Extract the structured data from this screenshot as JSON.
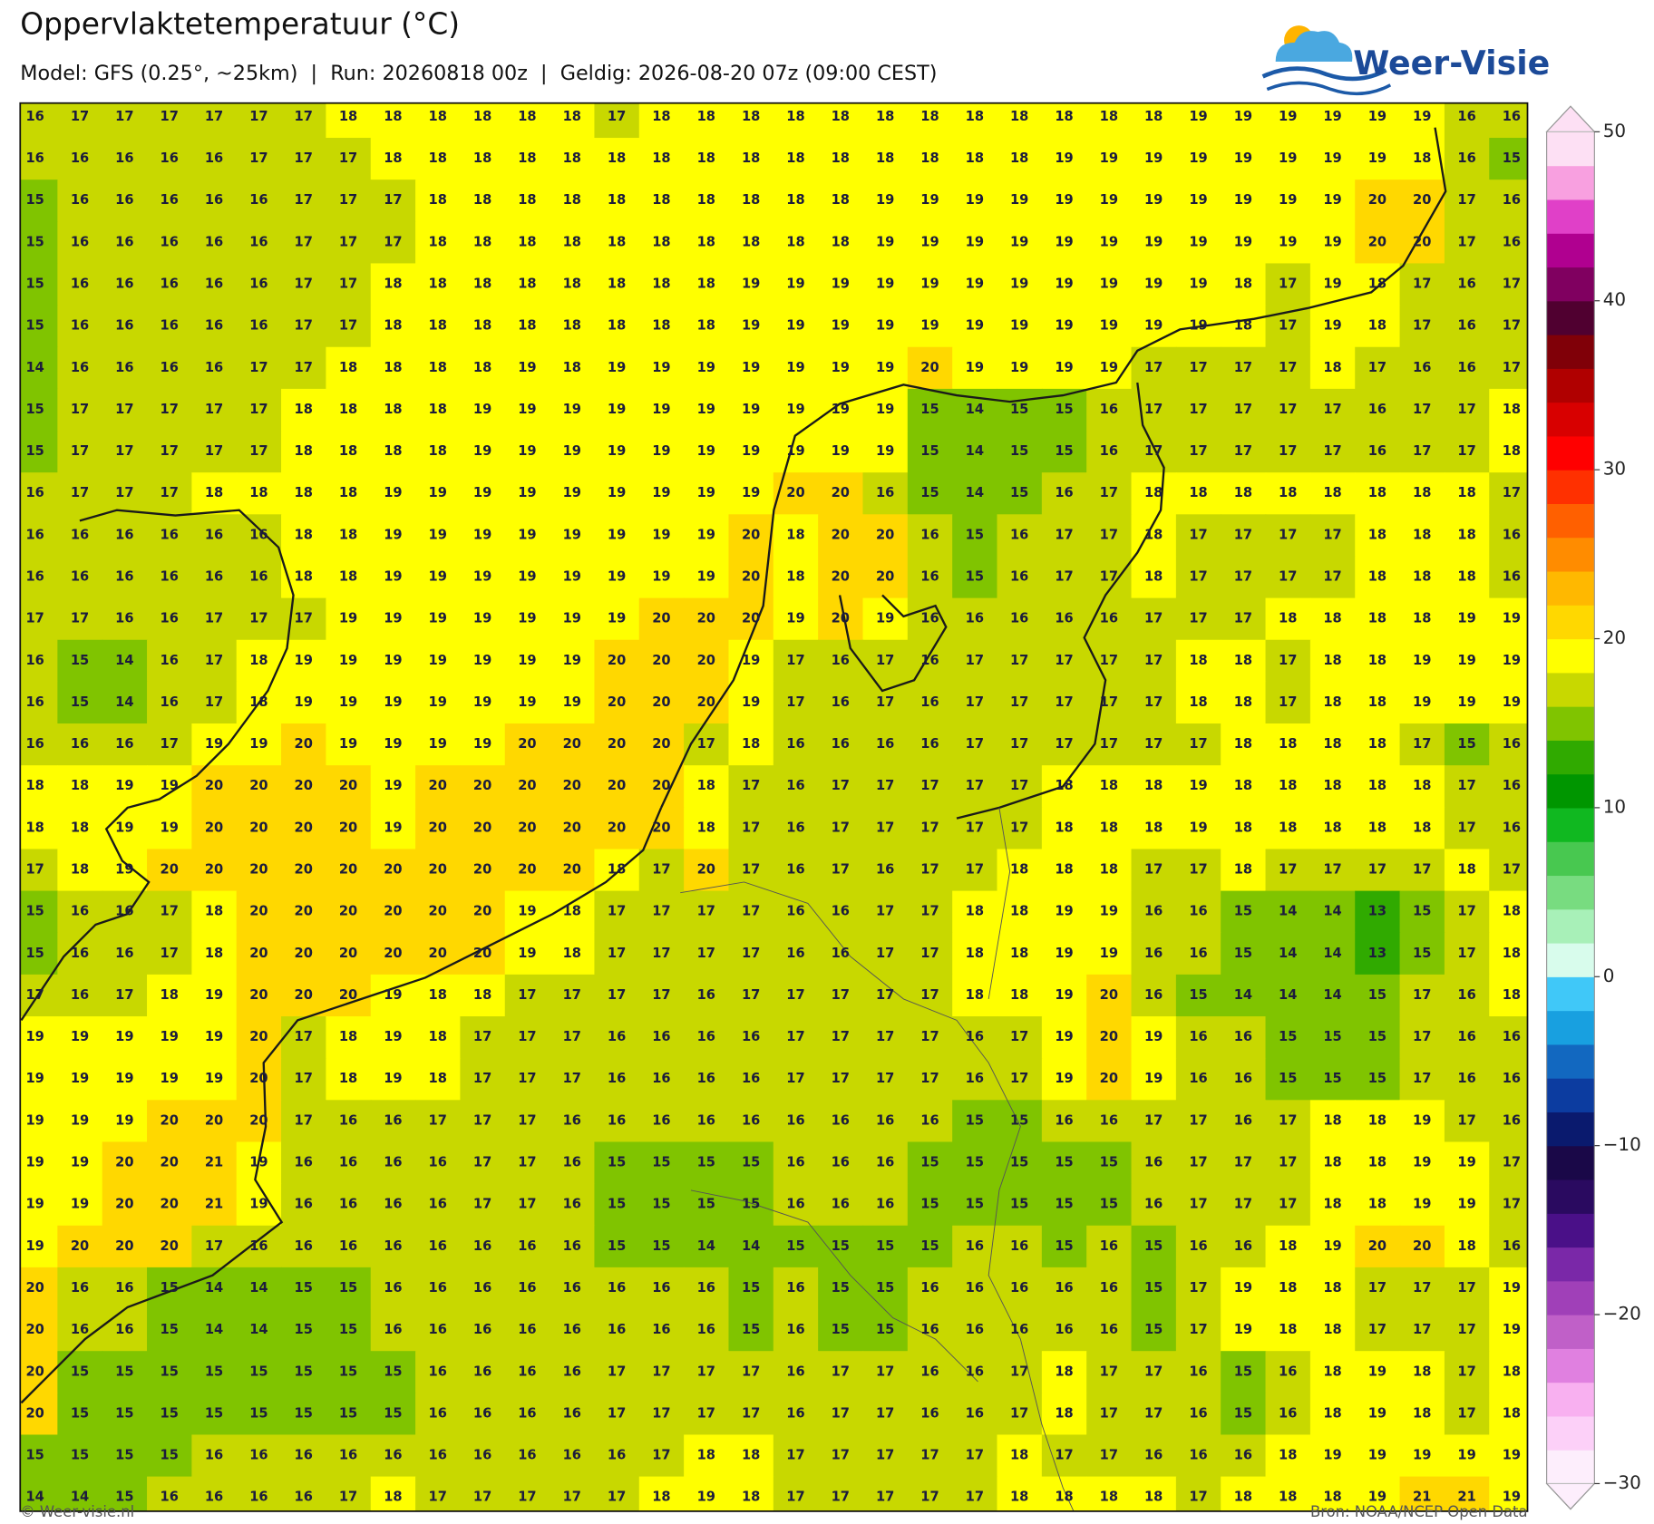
{
  "header": {
    "title": "Oppervlaktetemperatuur (°C)",
    "subtitle": "Model: GFS (0.25°, ~25km)  |  Run: 20260818 00z  |  Geldig: 2026-08-20 07z (09:00 CEST)",
    "logo": "Weer-Visie"
  },
  "map": {
    "grid": [
      [
        16,
        17,
        17,
        17,
        17,
        17,
        17,
        18,
        18,
        18,
        18,
        18,
        18,
        17,
        18,
        18,
        18,
        18,
        18,
        18,
        18,
        18,
        18,
        18,
        18,
        18,
        19,
        19,
        19,
        19,
        19,
        19,
        16,
        16
      ],
      [
        16,
        16,
        16,
        16,
        16,
        17,
        17,
        17,
        18,
        18,
        18,
        18,
        18,
        18,
        18,
        18,
        18,
        18,
        18,
        18,
        18,
        18,
        18,
        19,
        19,
        19,
        19,
        19,
        19,
        19,
        19,
        18,
        16,
        15
      ],
      [
        15,
        16,
        16,
        16,
        16,
        16,
        17,
        17,
        17,
        18,
        18,
        18,
        18,
        18,
        18,
        18,
        18,
        18,
        18,
        19,
        19,
        19,
        19,
        19,
        19,
        19,
        19,
        19,
        19,
        19,
        20,
        20,
        17,
        16
      ],
      [
        15,
        16,
        16,
        16,
        16,
        16,
        17,
        17,
        17,
        18,
        18,
        18,
        18,
        18,
        18,
        18,
        18,
        18,
        18,
        19,
        19,
        19,
        19,
        19,
        19,
        19,
        19,
        19,
        19,
        19,
        20,
        20,
        17,
        16
      ],
      [
        15,
        16,
        16,
        16,
        16,
        16,
        17,
        17,
        18,
        18,
        18,
        18,
        18,
        18,
        18,
        18,
        19,
        19,
        19,
        19,
        19,
        19,
        19,
        19,
        19,
        19,
        19,
        18,
        17,
        19,
        18,
        17,
        16,
        17
      ],
      [
        15,
        16,
        16,
        16,
        16,
        16,
        17,
        17,
        18,
        18,
        18,
        18,
        18,
        18,
        18,
        18,
        19,
        19,
        19,
        19,
        19,
        19,
        19,
        19,
        19,
        19,
        19,
        18,
        17,
        19,
        18,
        17,
        16,
        17
      ],
      [
        14,
        16,
        16,
        16,
        16,
        17,
        17,
        18,
        18,
        18,
        18,
        19,
        18,
        19,
        19,
        19,
        19,
        19,
        19,
        19,
        20,
        19,
        19,
        19,
        19,
        17,
        17,
        17,
        17,
        18,
        17,
        16,
        16,
        17
      ],
      [
        15,
        17,
        17,
        17,
        17,
        17,
        18,
        18,
        18,
        18,
        19,
        19,
        19,
        19,
        19,
        19,
        19,
        19,
        19,
        19,
        15,
        14,
        15,
        15,
        16,
        17,
        17,
        17,
        17,
        17,
        16,
        17,
        17,
        18
      ],
      [
        15,
        17,
        17,
        17,
        17,
        17,
        18,
        18,
        18,
        18,
        19,
        19,
        19,
        19,
        19,
        19,
        19,
        19,
        19,
        19,
        15,
        14,
        15,
        15,
        16,
        17,
        17,
        17,
        17,
        17,
        16,
        17,
        17,
        18
      ],
      [
        16,
        17,
        17,
        17,
        18,
        18,
        18,
        18,
        19,
        19,
        19,
        19,
        19,
        19,
        19,
        19,
        19,
        20,
        20,
        16,
        15,
        14,
        15,
        16,
        17,
        18,
        18,
        18,
        18,
        18,
        18,
        18,
        18,
        17
      ],
      [
        16,
        16,
        16,
        16,
        16,
        16,
        18,
        18,
        19,
        19,
        19,
        19,
        19,
        19,
        19,
        19,
        20,
        18,
        20,
        20,
        16,
        15,
        16,
        17,
        17,
        18,
        17,
        17,
        17,
        17,
        18,
        18,
        18,
        16
      ],
      [
        16,
        16,
        16,
        16,
        16,
        16,
        18,
        18,
        19,
        19,
        19,
        19,
        19,
        19,
        19,
        19,
        20,
        18,
        20,
        20,
        16,
        15,
        16,
        17,
        17,
        18,
        17,
        17,
        17,
        17,
        18,
        18,
        18,
        16
      ],
      [
        17,
        17,
        16,
        16,
        17,
        17,
        17,
        19,
        19,
        19,
        19,
        19,
        19,
        19,
        20,
        20,
        20,
        19,
        20,
        19,
        16,
        16,
        16,
        16,
        16,
        17,
        17,
        17,
        18,
        18,
        18,
        18,
        19,
        19
      ],
      [
        16,
        15,
        14,
        16,
        17,
        18,
        19,
        19,
        19,
        19,
        19,
        19,
        19,
        20,
        20,
        20,
        19,
        17,
        16,
        17,
        16,
        17,
        17,
        17,
        17,
        17,
        18,
        18,
        17,
        18,
        18,
        19,
        19,
        19
      ],
      [
        16,
        15,
        14,
        16,
        17,
        18,
        19,
        19,
        19,
        19,
        19,
        19,
        19,
        20,
        20,
        20,
        19,
        17,
        16,
        17,
        16,
        17,
        17,
        17,
        17,
        17,
        18,
        18,
        17,
        18,
        18,
        19,
        19,
        19
      ],
      [
        16,
        16,
        16,
        17,
        19,
        19,
        20,
        19,
        19,
        19,
        19,
        20,
        20,
        20,
        20,
        17,
        18,
        16,
        16,
        16,
        16,
        17,
        17,
        17,
        17,
        17,
        17,
        18,
        18,
        18,
        18,
        17,
        15,
        16
      ],
      [
        18,
        18,
        19,
        19,
        20,
        20,
        20,
        20,
        19,
        20,
        20,
        20,
        20,
        20,
        20,
        18,
        17,
        16,
        17,
        17,
        17,
        17,
        17,
        18,
        18,
        18,
        19,
        18,
        18,
        18,
        18,
        18,
        17,
        16
      ],
      [
        18,
        18,
        19,
        19,
        20,
        20,
        20,
        20,
        19,
        20,
        20,
        20,
        20,
        20,
        20,
        18,
        17,
        16,
        17,
        17,
        17,
        17,
        17,
        18,
        18,
        18,
        19,
        18,
        18,
        18,
        18,
        18,
        17,
        16
      ],
      [
        17,
        18,
        19,
        20,
        20,
        20,
        20,
        20,
        20,
        20,
        20,
        20,
        20,
        18,
        17,
        20,
        17,
        16,
        17,
        16,
        17,
        17,
        18,
        18,
        18,
        17,
        17,
        18,
        17,
        17,
        17,
        17,
        18,
        17
      ],
      [
        15,
        16,
        16,
        17,
        18,
        20,
        20,
        20,
        20,
        20,
        20,
        19,
        18,
        17,
        17,
        17,
        17,
        16,
        16,
        17,
        17,
        18,
        18,
        19,
        19,
        16,
        16,
        15,
        14,
        14,
        13,
        15,
        17,
        18
      ],
      [
        15,
        16,
        16,
        17,
        18,
        20,
        20,
        20,
        20,
        20,
        20,
        19,
        18,
        17,
        17,
        17,
        17,
        16,
        16,
        17,
        17,
        18,
        18,
        19,
        19,
        16,
        16,
        15,
        14,
        14,
        13,
        15,
        17,
        18
      ],
      [
        17,
        16,
        17,
        18,
        19,
        20,
        20,
        20,
        19,
        18,
        18,
        17,
        17,
        17,
        17,
        16,
        17,
        17,
        17,
        17,
        17,
        18,
        18,
        19,
        20,
        16,
        15,
        14,
        14,
        14,
        15,
        17,
        16,
        18
      ],
      [
        19,
        19,
        19,
        19,
        19,
        20,
        17,
        18,
        19,
        18,
        17,
        17,
        17,
        16,
        16,
        16,
        16,
        17,
        17,
        17,
        17,
        16,
        17,
        19,
        20,
        19,
        16,
        16,
        15,
        15,
        15,
        17,
        16,
        16
      ],
      [
        19,
        19,
        19,
        19,
        19,
        20,
        17,
        18,
        19,
        18,
        17,
        17,
        17,
        16,
        16,
        16,
        16,
        17,
        17,
        17,
        17,
        16,
        17,
        19,
        20,
        19,
        16,
        16,
        15,
        15,
        15,
        17,
        16,
        16
      ],
      [
        19,
        19,
        19,
        20,
        20,
        20,
        17,
        16,
        16,
        17,
        17,
        17,
        16,
        16,
        16,
        16,
        16,
        16,
        16,
        16,
        16,
        15,
        15,
        16,
        16,
        17,
        17,
        16,
        17,
        18,
        18,
        19,
        17,
        16
      ],
      [
        19,
        19,
        20,
        20,
        21,
        19,
        16,
        16,
        16,
        16,
        17,
        17,
        16,
        15,
        15,
        15,
        15,
        16,
        16,
        16,
        15,
        15,
        15,
        15,
        15,
        16,
        17,
        17,
        17,
        18,
        18,
        19,
        19,
        17
      ],
      [
        19,
        19,
        20,
        20,
        21,
        19,
        16,
        16,
        16,
        16,
        17,
        17,
        16,
        15,
        15,
        15,
        15,
        16,
        16,
        16,
        15,
        15,
        15,
        15,
        15,
        16,
        17,
        17,
        17,
        18,
        18,
        19,
        19,
        17
      ],
      [
        19,
        20,
        20,
        20,
        17,
        16,
        16,
        16,
        16,
        16,
        16,
        16,
        16,
        15,
        15,
        14,
        14,
        15,
        15,
        15,
        15,
        16,
        16,
        15,
        16,
        15,
        16,
        16,
        18,
        19,
        20,
        20,
        18,
        16
      ],
      [
        20,
        16,
        16,
        15,
        14,
        14,
        15,
        15,
        16,
        16,
        16,
        16,
        16,
        16,
        16,
        16,
        15,
        16,
        15,
        15,
        16,
        16,
        16,
        16,
        16,
        15,
        17,
        19,
        18,
        18,
        17,
        17,
        17,
        19
      ],
      [
        20,
        16,
        16,
        15,
        14,
        14,
        15,
        15,
        16,
        16,
        16,
        16,
        16,
        16,
        16,
        16,
        15,
        16,
        15,
        15,
        16,
        16,
        16,
        16,
        16,
        15,
        17,
        19,
        18,
        18,
        17,
        17,
        17,
        19
      ],
      [
        20,
        15,
        15,
        15,
        15,
        15,
        15,
        15,
        15,
        16,
        16,
        16,
        16,
        17,
        17,
        17,
        17,
        16,
        17,
        17,
        16,
        16,
        17,
        18,
        17,
        17,
        16,
        15,
        16,
        18,
        19,
        18,
        17,
        18
      ],
      [
        20,
        15,
        15,
        15,
        15,
        15,
        15,
        15,
        15,
        16,
        16,
        16,
        16,
        17,
        17,
        17,
        17,
        16,
        17,
        17,
        16,
        16,
        17,
        18,
        17,
        17,
        16,
        15,
        16,
        18,
        19,
        18,
        17,
        18
      ],
      [
        15,
        15,
        15,
        15,
        16,
        16,
        16,
        16,
        16,
        16,
        16,
        16,
        16,
        16,
        17,
        18,
        18,
        17,
        17,
        17,
        17,
        17,
        18,
        17,
        17,
        16,
        16,
        16,
        18,
        19,
        19,
        19,
        19,
        19
      ],
      [
        14,
        14,
        15,
        16,
        16,
        16,
        16,
        17,
        18,
        17,
        17,
        17,
        17,
        17,
        18,
        19,
        18,
        17,
        17,
        17,
        17,
        17,
        18,
        18,
        18,
        18,
        17,
        18,
        18,
        18,
        19,
        21,
        21,
        19
      ]
    ],
    "colorbar": {
      "lim": [
        -30,
        50
      ],
      "ticks": [
        50,
        40,
        30,
        20,
        10,
        0,
        {
          "value": -10,
          "label": "−10"
        },
        {
          "value": -20,
          "label": "−20"
        },
        {
          "value": -30,
          "label": "−30"
        }
      ],
      "colors": [
        "#fdeefc",
        "#fcd0f8",
        "#f8b0f0",
        "#e080e0",
        "#c060c8",
        "#a040b8",
        "#7a28a8",
        "#4a1088",
        "#2a0a60",
        "#1a0848",
        "#0a1a6e",
        "#0c3ca0",
        "#1268c0",
        "#18a0e0",
        "#40c8f8",
        "#d8fcec",
        "#a8f0b8",
        "#78dc80",
        "#48c850",
        "#10b820",
        "#009600",
        "#30aa00",
        "#80c400",
        "#c8d800",
        "#ffff00",
        "#ffd800",
        "#ffb800",
        "#ff8c00",
        "#ff6000",
        "#ff3000",
        "#ff0000",
        "#d80000",
        "#b00000",
        "#800008",
        "#500030",
        "#800060",
        "#b00090",
        "#e040c8",
        "#f8a0e0",
        "#fde0f4"
      ]
    }
  },
  "footer": {
    "left": "© Weer-visie.nl",
    "right": "Bron: NOAA/NCEP Open Data"
  }
}
